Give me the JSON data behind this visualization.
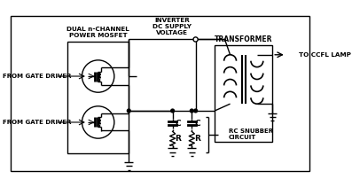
{
  "background_color": "#ffffff",
  "line_color": "#000000",
  "text_color": "#000000",
  "fig_width": 3.97,
  "fig_height": 2.11,
  "dpi": 100,
  "labels": {
    "dual_mosfet": "DUAL n-CHANNEL\nPOWER MOSFET",
    "inverter": "INVERTER\nDC SUPPLY\nVOLTAGE",
    "transformer": "TRANSFORMER",
    "to_ccfl": "TO CCFL LAMP",
    "gate1": "FROM GATE DRIVER",
    "gate2": "FROM GATE DRIVER",
    "rc_snubber": "RC SNUBBER\nCIRCUIT",
    "C1": "C",
    "C2": "C",
    "R1": "R",
    "R2": "R"
  }
}
